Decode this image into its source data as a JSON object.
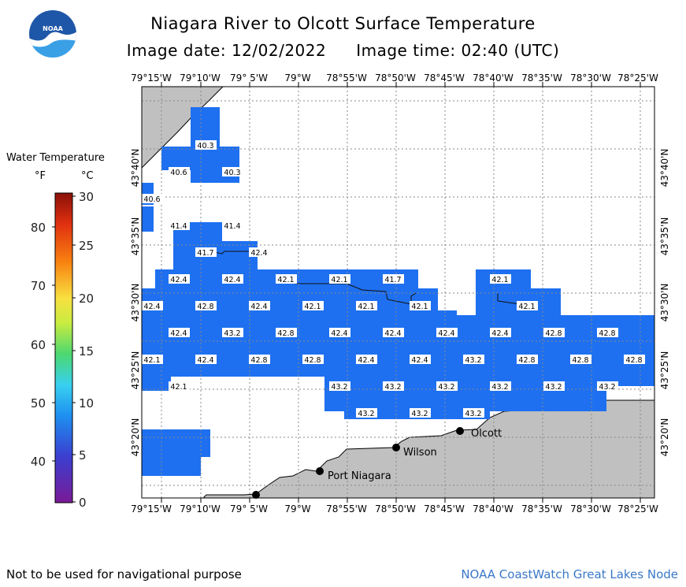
{
  "header": {
    "title": "Niagara River to Olcott Surface Temperature",
    "date_label": "Image date: 12/02/2022",
    "time_label": "Image time: 02:40 (UTC)"
  },
  "logo": {
    "icon": "noaa-logo-icon",
    "text": "NOAA"
  },
  "legend": {
    "title": "Water Temperature",
    "unit_f": "°F",
    "unit_c": "°C",
    "f_ticks": [
      "80",
      "70",
      "60",
      "50",
      "40"
    ],
    "c_ticks": [
      "30",
      "25",
      "20",
      "15",
      "10",
      "5",
      "0"
    ]
  },
  "axes": {
    "x_ticks": [
      "79°15'W",
      "79°10'W",
      "79° 5'W",
      "79°W",
      "78°55'W",
      "78°50'W",
      "78°45'W",
      "78°40'W",
      "78°35'W",
      "78°30'W",
      "78°25'W"
    ],
    "y_ticks": [
      "43°40'N",
      "43°35'N",
      "43°30'N",
      "43°25'N",
      "43°20'N"
    ]
  },
  "temperature_labels": [
    "40.3",
    "40.6",
    "40.3",
    "40.6",
    "41.4",
    "41.4",
    "41.7",
    "42.4",
    "42.4",
    "42.4",
    "42.1",
    "42.1",
    "41.7",
    "42.1",
    "42.4",
    "42.8",
    "42.4",
    "42.1",
    "42.1",
    "42.1",
    "42.1",
    "42.4",
    "43.2",
    "42.8",
    "42.4",
    "42.4",
    "42.4",
    "42.4",
    "42.8",
    "42.8",
    "42.1",
    "42.4",
    "42.8",
    "42.8",
    "42.4",
    "42.4",
    "43.2",
    "42.8",
    "42.8",
    "42.8",
    "42.1",
    "43.2",
    "43.2",
    "43.2",
    "43.2",
    "43.2",
    "43.2",
    "43.2",
    "43.2",
    "43.2"
  ],
  "places": [
    "Olcott",
    "Wilson",
    "Port Niagara"
  ],
  "colors": {
    "water": "#1e70f0",
    "land": "#c0c0c0",
    "grid": "#888888"
  },
  "footer": {
    "disclaimer": "Not to be used for navigational purpose",
    "credit": "NOAA CoastWatch Great Lakes Node"
  }
}
